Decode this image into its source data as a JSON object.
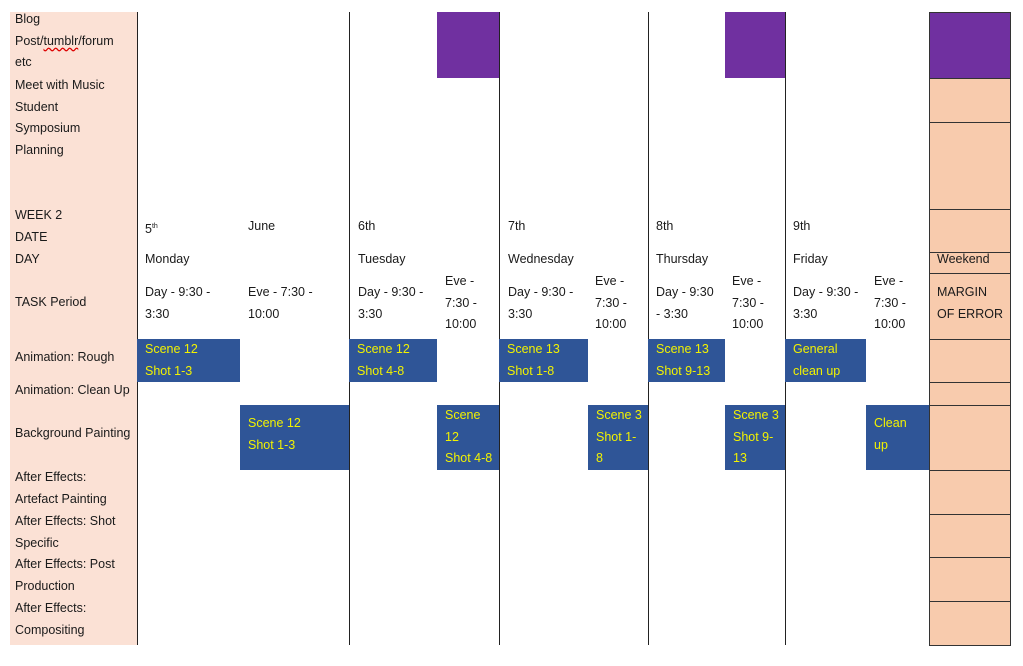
{
  "header_labels": {
    "blog": [
      "Blog",
      "Post/",
      "tumblr",
      "/forum",
      "etc"
    ],
    "music": [
      "Meet with Music",
      "Student"
    ],
    "symposium": [
      "Symposium",
      "Planning"
    ],
    "week": "WEEK 2",
    "date": "DATE",
    "day": "DAY",
    "task_period": "TASK Period"
  },
  "rows": [
    "Animation: Rough",
    "Animation: Clean Up",
    "Background Painting",
    [
      "After Effects:",
      "Artefact Painting"
    ],
    [
      "After Effects: Shot",
      "Specific"
    ],
    [
      "After Effects: Post",
      "Production"
    ],
    [
      "After Effects:",
      "Compositing"
    ]
  ],
  "days": [
    {
      "date": "5",
      "date_sup": "th",
      "month": "June",
      "day": "Monday",
      "day_period": [
        "Day - 9:30 -",
        "3:30"
      ],
      "eve_period": [
        "Eve - 7:30 -",
        "10:00"
      ]
    },
    {
      "date": "6th",
      "day": "Tuesday",
      "day_period": [
        "Day - 9:30 -",
        "3:30"
      ],
      "eve_period": [
        "Eve -",
        "7:30 -",
        "10:00"
      ]
    },
    {
      "date": "7th",
      "day": "Wednesday",
      "day_period": [
        "Day - 9:30 -",
        "3:30"
      ],
      "eve_period": [
        "Eve -",
        "7:30 -",
        "10:00"
      ]
    },
    {
      "date": "8th",
      "day": "Thursday",
      "day_period": [
        "Day - 9:30",
        "- 3:30"
      ],
      "eve_period": [
        "Eve -",
        "7:30 -",
        "10:00"
      ]
    },
    {
      "date": "9th",
      "day": "Friday",
      "day_period": [
        "Day - 9:30 -",
        "3:30"
      ],
      "eve_period": [
        "Eve -",
        "7:30 -",
        "10:00"
      ]
    }
  ],
  "weekend": {
    "label": "Weekend",
    "period": [
      "MARGIN",
      "OF ERROR"
    ]
  },
  "tasks": {
    "rough": [
      [
        "Scene 12",
        "Shot 1-3"
      ],
      [
        "Scene 12",
        "Shot 4-8"
      ],
      [
        "Scene 13",
        "Shot 1-8"
      ],
      [
        "Scene 13",
        "Shot 9-13"
      ],
      [
        "General",
        "clean up"
      ]
    ],
    "background": [
      [
        "Scene 12",
        "Shot 1-3"
      ],
      [
        "Scene",
        "12",
        "Shot 4-8"
      ],
      [
        "Scene 3",
        "Shot 1-",
        "8"
      ],
      [
        "Scene 3",
        "Shot 9-",
        "13"
      ],
      [
        "Clean",
        "up"
      ]
    ]
  },
  "colors": {
    "label_bg": "#fbe1d5",
    "weekend_bg": "#f8cbad",
    "task_bg": "#2f5597",
    "task_text": "#f2f200",
    "milestone": "#7030a0"
  }
}
